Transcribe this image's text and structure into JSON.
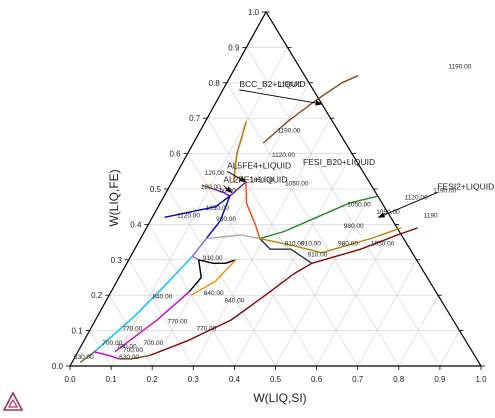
{
  "chart_data": {
    "type": "ternary-liquidus",
    "xlabel": "W(LIQ,SI)",
    "ylabel": "W(LIQ,FE)",
    "xlim": [
      0,
      1
    ],
    "ylim": [
      0,
      1
    ],
    "x_ticks": [
      "0.0",
      "0.1",
      "0.2",
      "0.3",
      "0.4",
      "0.5",
      "0.6",
      "0.7",
      "0.8",
      "0.9",
      "1.0"
    ],
    "y_ticks": [
      "0.0",
      "0.1",
      "0.2",
      "0.3",
      "0.4",
      "0.5",
      "0.6",
      "0.7",
      "0.8",
      "0.9",
      "1.0"
    ],
    "grid": true,
    "regions": [
      {
        "label": "BCC_B2+LIQUID",
        "at": [
          0.04,
          0.78
        ]
      },
      {
        "label": "AL5FE4+LIQUID",
        "at": [
          0.12,
          0.55
        ]
      },
      {
        "label": "AL2FE1+LIQUID",
        "at": [
          0.13,
          0.51
        ]
      },
      {
        "label": "FESI_B20+LIQUID",
        "at": [
          0.3,
          0.56
        ]
      },
      {
        "label": "FESI2+LIQUID",
        "at": [
          0.66,
          0.49
        ]
      }
    ],
    "isotherm_labels": [
      {
        "text": "1190.00",
        "at": [
          0.13,
          0.79
        ]
      },
      {
        "text": "1190.00",
        "at": [
          0.19,
          0.66
        ]
      },
      {
        "text": "1120.00",
        "at": [
          0.21,
          0.59
        ]
      },
      {
        "text": "1050.00",
        "at": [
          0.19,
          0.52
        ]
      },
      {
        "text": "1050.00",
        "at": [
          0.28,
          0.51
        ]
      },
      {
        "text": "1120.00",
        "at": [
          0.06,
          0.42
        ]
      },
      {
        "text": "1050.00",
        "at": [
          0.12,
          0.44
        ]
      },
      {
        "text": "980.00",
        "at": [
          0.16,
          0.41
        ]
      },
      {
        "text": "120.00",
        "at": [
          0.07,
          0.54
        ]
      },
      {
        "text": "120.00",
        "at": [
          0.08,
          0.5
        ]
      },
      {
        "text": "50.00",
        "at": [
          0.13,
          0.49
        ]
      },
      {
        "text": "1190.00",
        "at": [
          0.65,
          0.49
        ]
      },
      {
        "text": "1120.00",
        "at": [
          0.59,
          0.47
        ]
      },
      {
        "text": "1050.00",
        "at": [
          0.46,
          0.45
        ]
      },
      {
        "text": "1050.00",
        "at": [
          0.54,
          0.43
        ]
      },
      {
        "text": "980.00",
        "at": [
          0.48,
          0.39
        ]
      },
      {
        "text": "1190",
        "at": [
          0.66,
          0.42
        ]
      },
      {
        "text": "1050.00",
        "at": [
          0.57,
          0.34
        ]
      },
      {
        "text": "910.00",
        "at": [
          0.36,
          0.34
        ]
      },
      {
        "text": "910.00",
        "at": [
          0.4,
          0.34
        ]
      },
      {
        "text": "980.00",
        "at": [
          0.49,
          0.34
        ]
      },
      {
        "text": "910.00",
        "at": [
          0.43,
          0.31
        ]
      },
      {
        "text": "910.00",
        "at": [
          0.18,
          0.3
        ]
      },
      {
        "text": "840.00",
        "at": [
          0.11,
          0.19
        ]
      },
      {
        "text": "840.00",
        "at": [
          0.23,
          0.2
        ]
      },
      {
        "text": "840.00",
        "at": [
          0.29,
          0.18
        ]
      },
      {
        "text": "770.00",
        "at": [
          0.08,
          0.1
        ]
      },
      {
        "text": "770.00",
        "at": [
          0.18,
          0.12
        ]
      },
      {
        "text": "770.00",
        "at": [
          0.26,
          0.1
        ]
      },
      {
        "text": "700.00",
        "at": [
          0.05,
          0.06
        ]
      },
      {
        "text": "700.00",
        "at": [
          0.09,
          0.05
        ]
      },
      {
        "text": "700.00",
        "at": [
          0.15,
          0.06
        ]
      },
      {
        "text": "630.00",
        "at": [
          0.0,
          0.02
        ]
      },
      {
        "text": "630.00",
        "at": [
          0.11,
          0.02
        ]
      },
      {
        "text": "700.00",
        "at": [
          0.11,
          0.04
        ]
      },
      {
        "text": "1190.00",
        "at": [
          0.52,
          0.84
        ]
      }
    ],
    "curves": [
      {
        "color": "#cc0000",
        "points": [
          [
            0.1,
            0.69
          ],
          [
            0.12,
            0.6
          ],
          [
            0.135,
            0.56
          ],
          [
            0.15,
            0.52
          ]
        ]
      },
      {
        "color": "#b8860b",
        "points": [
          [
            0.1,
            0.69
          ],
          [
            0.12,
            0.6
          ],
          [
            0.135,
            0.56
          ],
          [
            0.15,
            0.52
          ]
        ]
      },
      {
        "color": "#6a0dad",
        "points": [
          [
            0.11,
            0.5
          ],
          [
            0.14,
            0.49
          ],
          [
            0.16,
            0.48
          ],
          [
            0.18,
            0.52
          ]
        ]
      },
      {
        "color": "#8b4513",
        "points": [
          [
            0.08,
            0.51
          ],
          [
            0.11,
            0.5
          ]
        ]
      },
      {
        "color": "#ff4500",
        "points": [
          [
            0.18,
            0.52
          ],
          [
            0.21,
            0.46
          ],
          [
            0.26,
            0.4
          ],
          [
            0.29,
            0.36
          ]
        ]
      },
      {
        "color": "#0000cc",
        "points": [
          [
            0.03,
            0.42
          ],
          [
            0.14,
            0.45
          ],
          [
            0.16,
            0.48
          ]
        ]
      },
      {
        "color": "#0000cc",
        "points": [
          [
            0.16,
            0.48
          ],
          [
            0.17,
            0.41
          ],
          [
            0.16,
            0.36
          ]
        ]
      },
      {
        "color": "#7b68ee",
        "points": [
          [
            0.16,
            0.36
          ],
          [
            0.15,
            0.31
          ],
          [
            0.17,
            0.3
          ]
        ]
      },
      {
        "color": "#000000",
        "points": [
          [
            0.17,
            0.3
          ],
          [
            0.2,
            0.25
          ],
          [
            0.19,
            0.21
          ]
        ]
      },
      {
        "color": "#000000",
        "points": [
          [
            0.17,
            0.3
          ],
          [
            0.21,
            0.29
          ],
          [
            0.24,
            0.29
          ],
          [
            0.26,
            0.3
          ]
        ]
      },
      {
        "color": "#aaaaaa",
        "points": [
          [
            0.16,
            0.36
          ],
          [
            0.24,
            0.37
          ],
          [
            0.29,
            0.36
          ]
        ]
      },
      {
        "color": "#00bfff",
        "points": [
          [
            0.15,
            0.31
          ],
          [
            0.12,
            0.22
          ],
          [
            0.09,
            0.14
          ],
          [
            0.06,
            0.08
          ],
          [
            0.04,
            0.04
          ]
        ]
      },
      {
        "color": "#556b2f",
        "points": [
          [
            0.04,
            0.04
          ],
          [
            0.02,
            0.01
          ]
        ]
      },
      {
        "color": "#cc00cc",
        "points": [
          [
            0.04,
            0.04
          ],
          [
            0.08,
            0.03
          ],
          [
            0.11,
            0.02
          ]
        ]
      },
      {
        "color": "#cc00cc",
        "points": [
          [
            0.19,
            0.21
          ],
          [
            0.15,
            0.13
          ],
          [
            0.11,
            0.07
          ],
          [
            0.09,
            0.04
          ]
        ]
      },
      {
        "color": "#8b4513",
        "points": [
          [
            0.11,
            0.02
          ],
          [
            0.14,
            0.02
          ],
          [
            0.18,
            0.03
          ]
        ]
      },
      {
        "color": "#ff8c00",
        "points": [
          [
            0.26,
            0.3
          ],
          [
            0.24,
            0.24
          ],
          [
            0.2,
            0.2
          ]
        ]
      },
      {
        "color": "#8b0000",
        "points": [
          [
            0.18,
            0.03
          ],
          [
            0.25,
            0.07
          ],
          [
            0.33,
            0.13
          ],
          [
            0.38,
            0.2
          ],
          [
            0.42,
            0.26
          ],
          [
            0.45,
            0.29
          ]
        ]
      },
      {
        "color": "#333333",
        "points": [
          [
            0.29,
            0.36
          ],
          [
            0.33,
            0.33
          ],
          [
            0.38,
            0.33
          ],
          [
            0.45,
            0.29
          ]
        ]
      },
      {
        "color": "#8b0000",
        "points": [
          [
            0.45,
            0.29
          ],
          [
            0.55,
            0.33
          ],
          [
            0.62,
            0.37
          ],
          [
            0.66,
            0.39
          ]
        ]
      },
      {
        "color": "#228b22",
        "points": [
          [
            0.29,
            0.36
          ],
          [
            0.34,
            0.38
          ],
          [
            0.4,
            0.42
          ],
          [
            0.46,
            0.46
          ],
          [
            0.52,
            0.48
          ]
        ]
      },
      {
        "color": "#b8860b",
        "points": [
          [
            0.29,
            0.36
          ],
          [
            0.38,
            0.34
          ],
          [
            0.46,
            0.32
          ],
          [
            0.56,
            0.36
          ],
          [
            0.62,
            0.39
          ]
        ]
      },
      {
        "color": "#8b4513",
        "points": [
          [
            0.17,
            0.63
          ],
          [
            0.2,
            0.69
          ],
          [
            0.24,
            0.75
          ],
          [
            0.28,
            0.8
          ],
          [
            0.31,
            0.82
          ]
        ]
      }
    ],
    "annotation_arrows": [
      {
        "label": "BCC_B2+LIQUID",
        "from": [
          0.04,
          0.78
        ],
        "to": [
          0.26,
          0.74
        ]
      },
      {
        "label": "AL5FE4+LIQUID",
        "from": [
          0.12,
          0.55
        ],
        "to": [
          0.18,
          0.52
        ]
      },
      {
        "label": "AL2FE1+LIQUID",
        "from": [
          0.13,
          0.51
        ],
        "to": [
          0.16,
          0.49
        ]
      },
      {
        "label": "FESI2+LIQUID",
        "from": [
          0.66,
          0.49
        ],
        "to": [
          0.55,
          0.42
        ]
      }
    ]
  },
  "logo": {
    "name": "thermo-calc-logo",
    "color": "#b03050"
  }
}
